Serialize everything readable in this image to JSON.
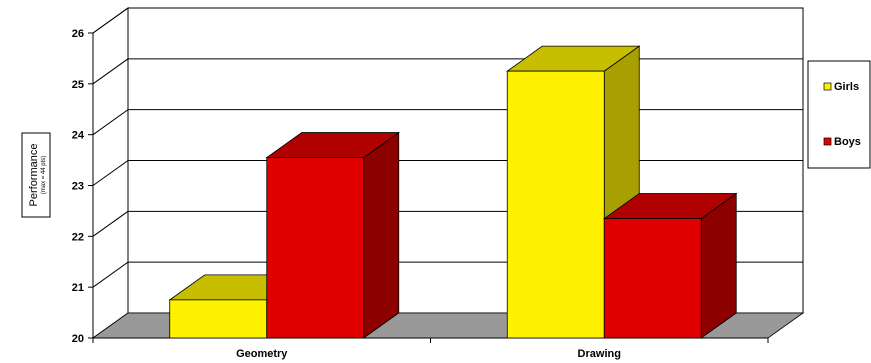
{
  "chart_data": {
    "type": "bar",
    "categories": [
      "Geometry",
      "Drawing"
    ],
    "series": [
      {
        "name": "Girls",
        "values": [
          20.75,
          25.25
        ],
        "color": "#FFF200",
        "top_color": "#C8BE00",
        "side_color": "#A8A000"
      },
      {
        "name": "Boys",
        "values": [
          23.55,
          22.35
        ],
        "color": "#E00000",
        "top_color": "#B00000",
        "side_color": "#8C0000"
      }
    ],
    "ylabel": "Performance",
    "ylabel_sub": "(max = 44 pts)",
    "ylim": [
      20,
      26
    ],
    "yticks": [
      "20",
      "21",
      "22",
      "23",
      "24",
      "25",
      "26"
    ],
    "grid": true,
    "legend_position": "right",
    "floor_color": "#999999"
  }
}
